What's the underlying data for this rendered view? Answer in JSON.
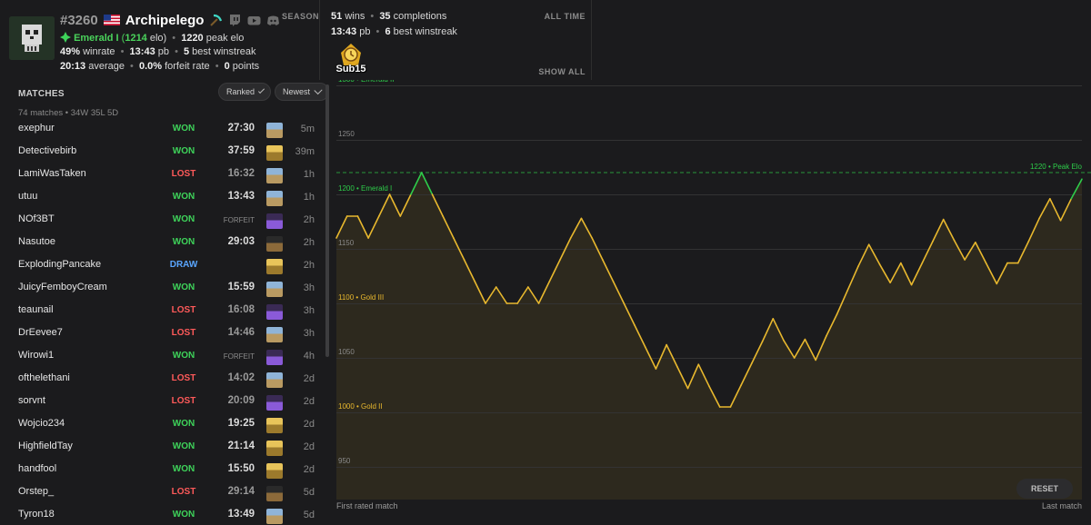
{
  "profile": {
    "rank": "#3260",
    "name": "Archipelego",
    "season_label": "SEASON",
    "elo_tier": "Emerald I",
    "elo_value": "1214",
    "elo_suffix": "elo)",
    "peak_elo": "1220",
    "peak_elo_label": "peak elo",
    "winrate": "49%",
    "winrate_label": "winrate",
    "pb": "13:43",
    "pb_label": "pb",
    "best_ws": "5",
    "best_ws_label": "best winstreak",
    "average": "20:13",
    "average_label": "average",
    "forfeit": "0.0%",
    "forfeit_label": "forfeit rate",
    "points": "0",
    "points_label": "points"
  },
  "alltime": {
    "label": "ALL TIME",
    "wins": "51",
    "wins_label": "wins",
    "completions": "35",
    "completions_label": "completions",
    "pb": "13:43",
    "pb_label": "pb",
    "best_ws": "6",
    "best_ws_label": "best winstreak",
    "badge_text": "Sub15",
    "show_all": "SHOW ALL"
  },
  "matches": {
    "title": "MATCHES",
    "filter_ranked": "Ranked",
    "filter_sort": "Newest",
    "summary": "74 matches • 34W 35L 5D",
    "rows": [
      {
        "opponent": "exephur",
        "result": "WON",
        "rclass": "won",
        "time": "27:30",
        "seed": "village",
        "ago": "5m"
      },
      {
        "opponent": "Detectivebirb",
        "result": "WON",
        "rclass": "won",
        "time": "37:59",
        "seed": "temple",
        "ago": "39m"
      },
      {
        "opponent": "LamiWasTaken",
        "result": "LOST",
        "rclass": "lost",
        "time": "16:32",
        "seed": "village",
        "ago": "1h",
        "dim": true
      },
      {
        "opponent": "utuu",
        "result": "WON",
        "rclass": "won",
        "time": "13:43",
        "seed": "village",
        "ago": "1h"
      },
      {
        "opponent": "NOf3BT",
        "result": "WON",
        "rclass": "won",
        "time": "FORFEIT",
        "seed": "portal",
        "ago": "2h",
        "ff": true
      },
      {
        "opponent": "Nasutoe",
        "result": "WON",
        "rclass": "won",
        "time": "29:03",
        "seed": "ship",
        "ago": "2h"
      },
      {
        "opponent": "ExplodingPancake",
        "result": "DRAW",
        "rclass": "draw",
        "time": "",
        "seed": "temple",
        "ago": "2h"
      },
      {
        "opponent": "JuicyFemboyCream",
        "result": "WON",
        "rclass": "won",
        "time": "15:59",
        "seed": "village",
        "ago": "3h"
      },
      {
        "opponent": "teaunail",
        "result": "LOST",
        "rclass": "lost",
        "time": "16:08",
        "seed": "portal",
        "ago": "3h",
        "dim": true
      },
      {
        "opponent": "DrEevee7",
        "result": "LOST",
        "rclass": "lost",
        "time": "14:46",
        "seed": "village",
        "ago": "3h",
        "dim": true
      },
      {
        "opponent": "Wirowi1",
        "result": "WON",
        "rclass": "won",
        "time": "FORFEIT",
        "seed": "portal",
        "ago": "4h",
        "ff": true
      },
      {
        "opponent": "ofthelethani",
        "result": "LOST",
        "rclass": "lost",
        "time": "14:02",
        "seed": "village",
        "ago": "2d",
        "dim": true
      },
      {
        "opponent": "sorvnt",
        "result": "LOST",
        "rclass": "lost",
        "time": "20:09",
        "seed": "portal",
        "ago": "2d",
        "dim": true
      },
      {
        "opponent": "Wojcio234",
        "result": "WON",
        "rclass": "won",
        "time": "19:25",
        "seed": "temple",
        "ago": "2d"
      },
      {
        "opponent": "HighfieldTay",
        "result": "WON",
        "rclass": "won",
        "time": "21:14",
        "seed": "temple",
        "ago": "2d"
      },
      {
        "opponent": "handfool",
        "result": "WON",
        "rclass": "won",
        "time": "15:50",
        "seed": "temple",
        "ago": "2d"
      },
      {
        "opponent": "Orstep_",
        "result": "LOST",
        "rclass": "lost",
        "time": "29:14",
        "seed": "ship",
        "ago": "5d",
        "dim": true
      },
      {
        "opponent": "Tyron18",
        "result": "WON",
        "rclass": "won",
        "time": "13:49",
        "seed": "village",
        "ago": "5d"
      }
    ]
  },
  "graph": {
    "first_label": "First rated match",
    "last_label": "Last match",
    "reset_label": "RESET",
    "peak_label": "1220 • Peak Elo",
    "colors": {
      "gold": "#e8b82e",
      "emerald": "#2ecc4a",
      "grid": "#333"
    }
  },
  "chart_data": {
    "type": "line",
    "ylim": [
      920,
      1305
    ],
    "yticks": [
      {
        "value": 1300,
        "label": "1300 • Emerald II",
        "tier": "emerald"
      },
      {
        "value": 1250,
        "label": "1250",
        "tier": "none"
      },
      {
        "value": 1200,
        "label": "1200 • Emerald I",
        "tier": "emerald"
      },
      {
        "value": 1150,
        "label": "1150",
        "tier": "none"
      },
      {
        "value": 1100,
        "label": "1100 • Gold III",
        "tier": "gold"
      },
      {
        "value": 1050,
        "label": "1050",
        "tier": "none"
      },
      {
        "value": 1000,
        "label": "1000 • Gold II",
        "tier": "gold"
      },
      {
        "value": 950,
        "label": "950",
        "tier": "none"
      }
    ],
    "peak": 1220,
    "x_labels": [
      "First rated match",
      "Last match"
    ],
    "values": [
      1160,
      1180,
      1180,
      1160,
      1180,
      1200,
      1180,
      1200,
      1220,
      1200,
      1180,
      1160,
      1140,
      1120,
      1100,
      1115,
      1100,
      1100,
      1115,
      1100,
      1120,
      1140,
      1160,
      1178,
      1160,
      1140,
      1120,
      1100,
      1080,
      1060,
      1040,
      1062,
      1042,
      1022,
      1044,
      1024,
      1005,
      1005,
      1025,
      1045,
      1065,
      1086,
      1066,
      1050,
      1067,
      1048,
      1070,
      1090,
      1112,
      1134,
      1154,
      1136,
      1119,
      1137,
      1117,
      1137,
      1157,
      1177,
      1158,
      1140,
      1156,
      1137,
      1118,
      1137,
      1137,
      1157,
      1178,
      1196,
      1176,
      1196,
      1214
    ]
  }
}
